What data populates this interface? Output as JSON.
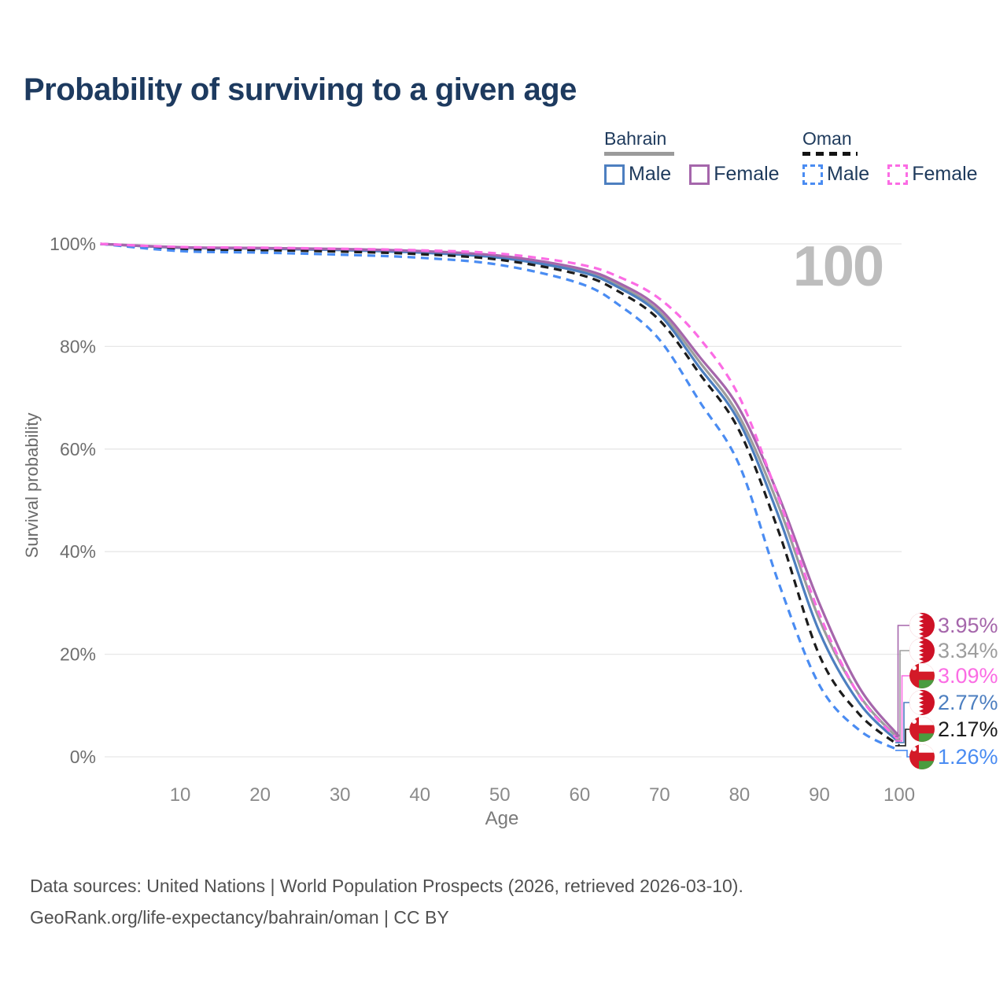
{
  "title": "Probability of surviving to a given age",
  "watermark": "100",
  "legend": {
    "groups": [
      {
        "name": "Bahrain",
        "underline_style": "solid",
        "underline_color": "#9b9b9b",
        "items": [
          {
            "label": "Male",
            "color": "#4d7fc0",
            "dashed": false
          },
          {
            "label": "Female",
            "color": "#a566ab",
            "dashed": false
          }
        ]
      },
      {
        "name": "Oman",
        "underline_style": "dashed",
        "underline_color": "#141414",
        "items": [
          {
            "label": "Male",
            "color": "#4a8cf2",
            "dashed": true
          },
          {
            "label": "Female",
            "color": "#fb6ce4",
            "dashed": true
          }
        ]
      }
    ]
  },
  "chart_data": {
    "type": "line",
    "title": "Probability of surviving to a given age",
    "xlabel": "Age",
    "ylabel": "Survival probability",
    "xlim": [
      0,
      100
    ],
    "ylim": [
      0,
      100
    ],
    "grid": "horizontal",
    "x": [
      0,
      10,
      20,
      30,
      40,
      50,
      60,
      65,
      70,
      75,
      80,
      85,
      90,
      95,
      100
    ],
    "x_ticks": [
      {
        "value": 10,
        "label": "10"
      },
      {
        "value": 20,
        "label": "20"
      },
      {
        "value": 30,
        "label": "30"
      },
      {
        "value": 40,
        "label": "40"
      },
      {
        "value": 50,
        "label": "50"
      },
      {
        "value": 60,
        "label": "60"
      },
      {
        "value": 70,
        "label": "70"
      },
      {
        "value": 80,
        "label": "80"
      },
      {
        "value": 90,
        "label": "90"
      },
      {
        "value": 100,
        "label": "100"
      }
    ],
    "y_ticks": [
      {
        "value": 100,
        "label": "100%"
      },
      {
        "value": 80,
        "label": "80%"
      },
      {
        "value": 60,
        "label": "60%"
      },
      {
        "value": 40,
        "label": "40%"
      },
      {
        "value": 20,
        "label": "20%"
      },
      {
        "value": 0,
        "label": "0%"
      }
    ],
    "series": [
      {
        "name": "Bahrain Female",
        "country": "bahrain",
        "sex": "female",
        "color": "#a566ab",
        "dash": "solid",
        "z": 4,
        "end_label": "3.95%",
        "values": [
          100,
          99.35,
          99.2,
          99.0,
          98.6,
          97.7,
          95.2,
          92.3,
          87.4,
          78.0,
          67.8,
          50.5,
          29.9,
          13.5,
          3.95
        ]
      },
      {
        "name": "Bahrain (both sexes)",
        "country": "bahrain",
        "sex": "both",
        "color": "#9d9d9d",
        "dash": "solid",
        "z": 0,
        "end_label": "3.34%",
        "values": [
          100,
          99.3,
          99.15,
          98.9,
          98.5,
          97.5,
          94.9,
          91.8,
          86.7,
          77.0,
          66.3,
          48.5,
          26.8,
          12.0,
          3.34
        ]
      },
      {
        "name": "Oman Female",
        "country": "oman",
        "sex": "female",
        "color": "#fb6ce4",
        "dash": "dashed",
        "z": 5,
        "end_label": "3.09%",
        "values": [
          100,
          99.4,
          99.25,
          99.05,
          98.75,
          98.1,
          96.0,
          93.5,
          89.3,
          81.6,
          70.1,
          50.0,
          27.9,
          11.9,
          3.09
        ]
      },
      {
        "name": "Bahrain Male",
        "country": "bahrain",
        "sex": "male",
        "color": "#4d7fc0",
        "dash": "solid",
        "z": 1,
        "end_label": "2.77%",
        "values": [
          100,
          99.25,
          99.1,
          98.8,
          98.3,
          97.3,
          94.6,
          91.4,
          86.2,
          75.9,
          65.2,
          46.5,
          24.4,
          10.5,
          2.77
        ]
      },
      {
        "name": "Oman (both sexes)",
        "country": "oman",
        "sex": "both",
        "color": "#1c1c1c",
        "dash": "dashed",
        "z": 2,
        "end_label": "2.17%",
        "values": [
          100,
          99.0,
          98.8,
          98.5,
          98.0,
          96.9,
          94.0,
          90.6,
          85.1,
          74.7,
          63.5,
          43.5,
          19.8,
          8.3,
          2.17
        ]
      },
      {
        "name": "Oman Male",
        "country": "oman",
        "sex": "male",
        "color": "#4a8cf2",
        "dash": "dashed",
        "z": 3,
        "end_label": "1.26%",
        "values": [
          100,
          98.6,
          98.3,
          97.9,
          97.3,
          95.9,
          92.3,
          88.0,
          81.3,
          69.3,
          56.8,
          33.5,
          14.0,
          5.2,
          1.26
        ]
      }
    ],
    "flag_colors": {
      "bahrain_red": "#ce1126",
      "oman_red": "#d31a28",
      "oman_green": "#4a9c3f",
      "white": "#ffffff"
    }
  },
  "footer": {
    "line1": "Data sources: United Nations | World Population Prospects (2026, retrieved 2026-03-10).",
    "line2": "GeoRank.org/life-expectancy/bahrain/oman | CC BY"
  }
}
